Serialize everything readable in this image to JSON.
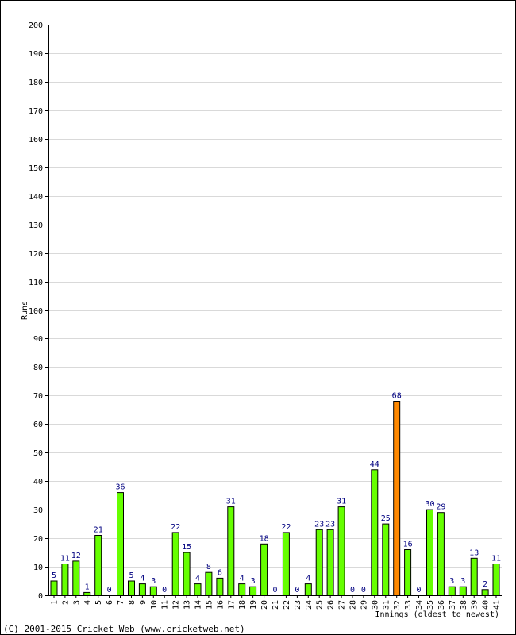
{
  "chart_data": {
    "type": "bar",
    "xlabel": "Innings (oldest to newest)",
    "ylabel": "Runs",
    "ylim": [
      0,
      200
    ],
    "ytick_step": 10,
    "grid": true,
    "categories": [
      "1",
      "2",
      "3",
      "4",
      "5",
      "6",
      "7",
      "8",
      "9",
      "10",
      "11",
      "12",
      "13",
      "14",
      "15",
      "16",
      "17",
      "18",
      "19",
      "20",
      "21",
      "22",
      "23",
      "24",
      "25",
      "26",
      "27",
      "28",
      "29",
      "30",
      "31",
      "32",
      "33",
      "34",
      "35",
      "36",
      "37",
      "38",
      "39",
      "40",
      "41"
    ],
    "values": [
      5,
      11,
      12,
      1,
      21,
      0,
      36,
      5,
      4,
      3,
      0,
      22,
      15,
      4,
      8,
      6,
      31,
      4,
      3,
      18,
      0,
      22,
      0,
      4,
      23,
      23,
      31,
      0,
      0,
      44,
      25,
      68,
      16,
      0,
      30,
      29,
      3,
      3,
      13,
      2,
      11
    ],
    "highlight_index": 31,
    "colors": {
      "bar": "#66ff00",
      "highlight": "#ff8800",
      "bar_stroke": "#000000",
      "label": "#000080"
    }
  },
  "footer": {
    "copyright": "(C) 2001-2015 Cricket Web (www.cricketweb.net)"
  }
}
